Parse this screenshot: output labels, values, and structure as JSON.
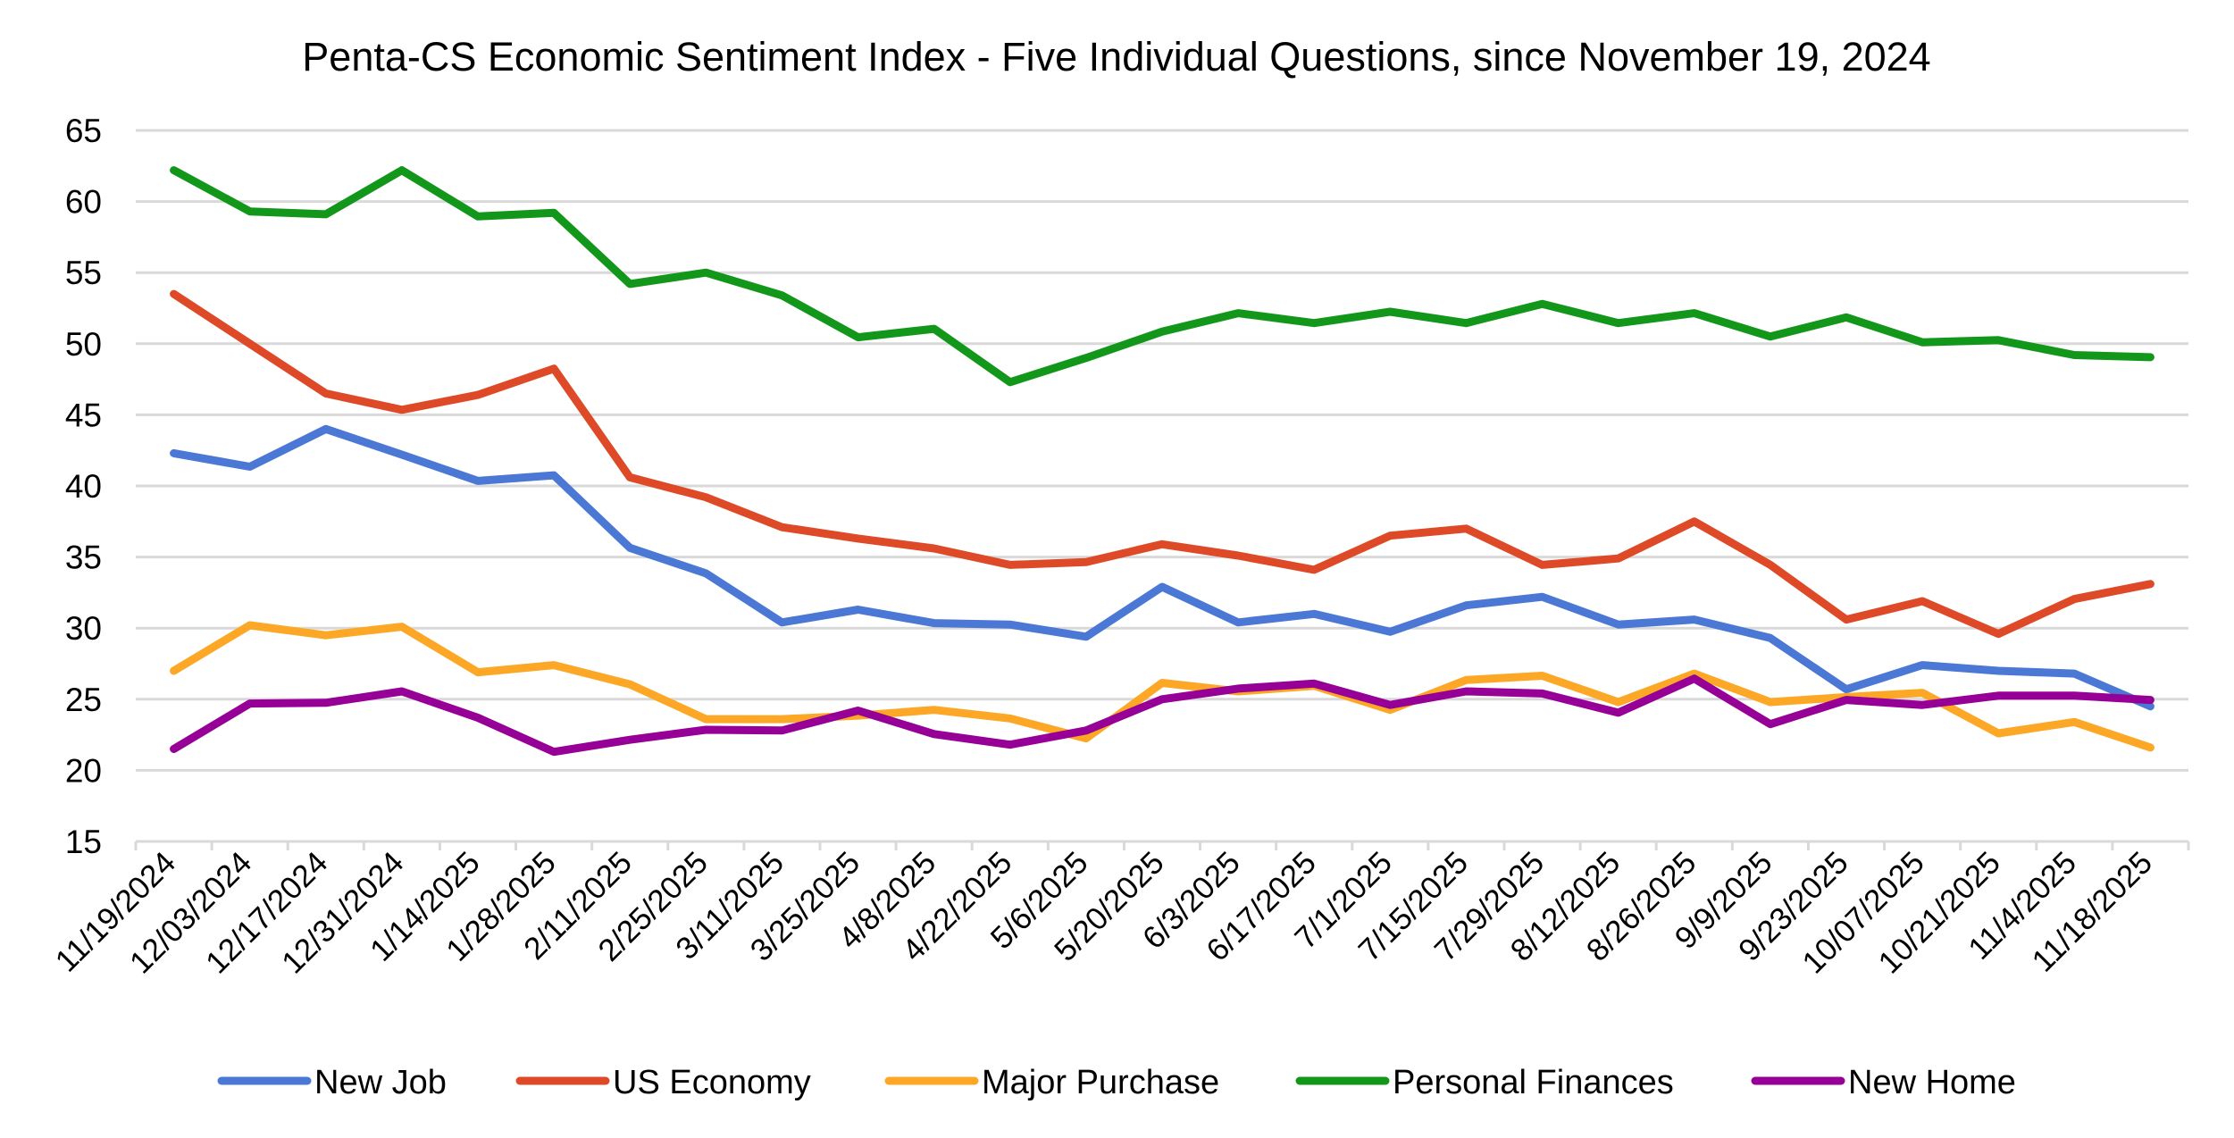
{
  "chart_data": {
    "type": "line",
    "title": "Penta-CS Economic Sentiment Index - Five Individual Questions, since November 19, 2024",
    "xlabel": "",
    "ylabel": "",
    "ylim": [
      15,
      65
    ],
    "yticks": [
      "15",
      "20",
      "25",
      "30",
      "35",
      "40",
      "45",
      "50",
      "55",
      "60",
      "65"
    ],
    "grid": true,
    "legend_position": "bottom",
    "categories": [
      "11/19/2024",
      "12/03/2024",
      "12/17/2024",
      "12/31/2024",
      "1/14/2025",
      "1/28/2025",
      "2/11/2025",
      "2/25/2025",
      "3/11/2025",
      "3/25/2025",
      "4/8/2025",
      "4/22/2025",
      "5/6/2025",
      "5/20/2025",
      "6/3/2025",
      "6/17/2025",
      "7/1/2025",
      "7/15/2025",
      "7/29/2025",
      "8/12/2025",
      "8/26/2025",
      "9/9/2025",
      "9/23/2025",
      "10/07/2025",
      "10/21/2025",
      "11/4/2025",
      "11/18/2025"
    ],
    "series": [
      {
        "name": "New Job",
        "color": "#4a78d4",
        "values": [
          42.3,
          41.35,
          44.0,
          42.2,
          40.35,
          40.75,
          35.65,
          33.85,
          30.4,
          31.3,
          30.35,
          30.25,
          29.4,
          32.9,
          30.4,
          31.0,
          29.75,
          31.6,
          32.2,
          30.25,
          30.6,
          29.3,
          25.7,
          27.4,
          27.0,
          26.8,
          24.5
        ]
      },
      {
        "name": "US Economy",
        "color": "#de4a27",
        "values": [
          53.5,
          50.0,
          46.5,
          45.35,
          46.4,
          48.25,
          40.6,
          39.2,
          37.1,
          36.3,
          35.6,
          34.45,
          34.65,
          35.9,
          35.1,
          34.1,
          36.5,
          37.0,
          34.45,
          34.9,
          37.5,
          34.45,
          30.6,
          31.9,
          29.6,
          32.05,
          33.1
        ]
      },
      {
        "name": "Major Purchase",
        "color": "#fda727",
        "values": [
          27.0,
          30.2,
          29.5,
          30.1,
          26.9,
          27.4,
          26.05,
          23.6,
          23.6,
          23.85,
          24.25,
          23.65,
          22.25,
          26.15,
          25.55,
          25.95,
          24.25,
          26.35,
          26.65,
          24.8,
          26.8,
          24.8,
          25.15,
          25.45,
          22.6,
          23.4,
          21.6
        ]
      },
      {
        "name": "Personal Finances",
        "color": "#13971b",
        "values": [
          62.2,
          59.3,
          59.1,
          62.2,
          58.95,
          59.2,
          54.2,
          55.0,
          53.4,
          50.45,
          51.05,
          47.3,
          49.0,
          50.85,
          52.15,
          51.45,
          52.25,
          51.45,
          52.8,
          51.45,
          52.15,
          50.5,
          51.85,
          50.1,
          50.25,
          49.2,
          49.05
        ]
      },
      {
        "name": "New Home",
        "color": "#970096",
        "values": [
          21.5,
          24.7,
          24.75,
          25.55,
          23.7,
          21.3,
          22.15,
          22.85,
          22.8,
          24.2,
          22.55,
          21.8,
          22.8,
          25.0,
          25.75,
          26.1,
          24.6,
          25.55,
          25.4,
          24.05,
          26.45,
          23.25,
          24.95,
          24.6,
          25.25,
          25.25,
          24.95
        ]
      }
    ]
  }
}
